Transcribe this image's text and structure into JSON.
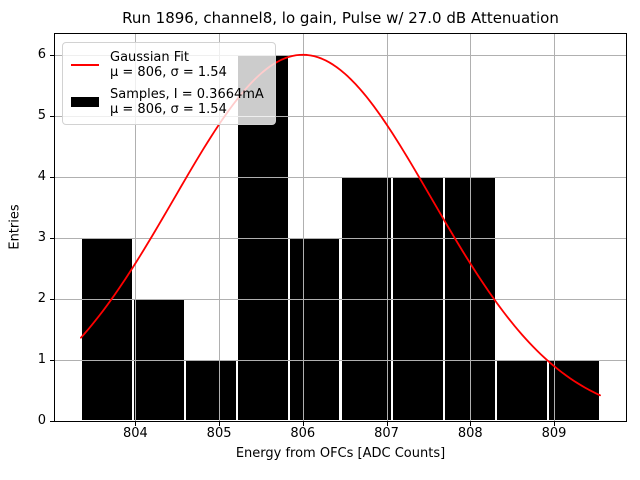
{
  "chart_data": {
    "type": "histogram",
    "title": "Run 1896, channel8, lo gain, Pulse w/ 27.0 dB Attenuation",
    "xlabel": "Energy from OFCs [ADC Counts]",
    "ylabel": "Entries",
    "xlim": [
      803.04,
      809.86
    ],
    "ylim": [
      0,
      6.34
    ],
    "x_ticks": [
      804,
      805,
      806,
      807,
      808,
      809
    ],
    "y_ticks": [
      0,
      1,
      2,
      3,
      4,
      5,
      6
    ],
    "grid": true,
    "grid_above_bars": true,
    "bins": {
      "edges": [
        803.35,
        803.97,
        804.59,
        805.21,
        805.83,
        806.45,
        807.07,
        807.69,
        808.31,
        808.93,
        809.55
      ],
      "counts": [
        3,
        2,
        1,
        6,
        3,
        4,
        4,
        4,
        1,
        1
      ]
    },
    "gaussian_fit": {
      "amplitude": 6.0,
      "mu": 806,
      "sigma": 1.54,
      "x_start": 803.35,
      "x_end": 809.55
    },
    "legend": {
      "position": "upper-left",
      "entries": [
        {
          "swatch": "red-line",
          "label": "Gaussian Fit",
          "sublabel": "μ = 806, σ = 1.54"
        },
        {
          "swatch": "black-patch",
          "label": "Samples, I = 0.3664mA",
          "sublabel": "μ = 806, σ = 1.54"
        }
      ]
    },
    "colors": {
      "fit_line": "#ff0000",
      "bars": "#000000",
      "bar_edge": "#ffffff",
      "grid": "#b0b0b0",
      "background": "#ffffff"
    }
  }
}
